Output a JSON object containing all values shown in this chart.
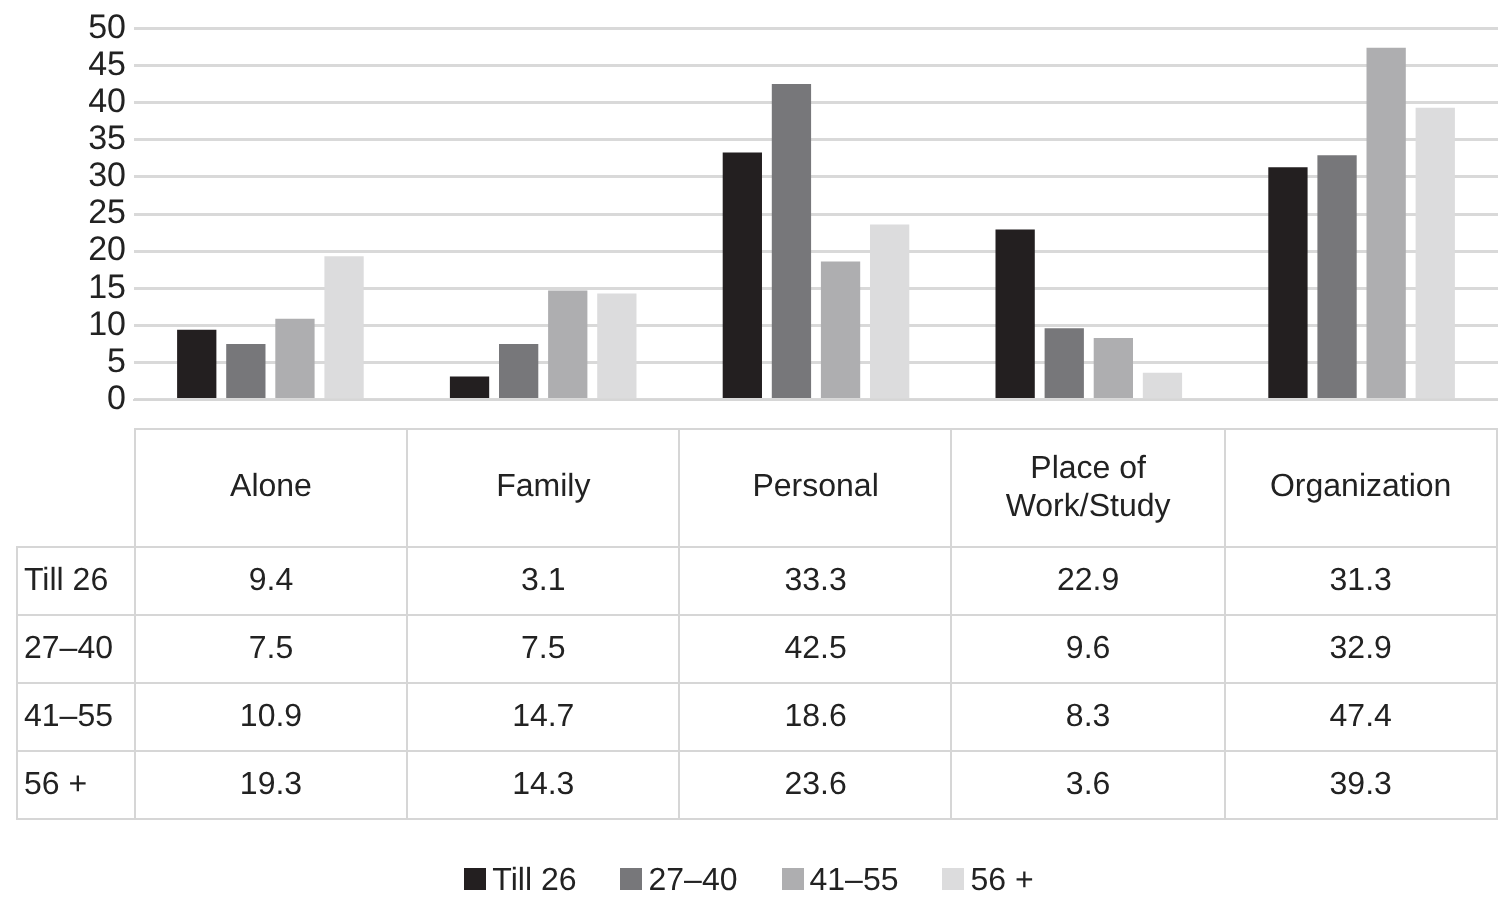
{
  "chart_data": {
    "type": "bar",
    "categories": [
      "Alone",
      "Family",
      "Personal",
      "Place of Work/Study",
      "Organization"
    ],
    "series": [
      {
        "name": "Till 26",
        "color": "#231f20",
        "values": [
          9.4,
          3.1,
          33.3,
          22.9,
          31.3
        ]
      },
      {
        "name": "27–40",
        "color": "#77777a",
        "values": [
          7.5,
          7.5,
          42.5,
          9.6,
          32.9
        ]
      },
      {
        "name": "41–55",
        "color": "#aeaeb0",
        "values": [
          10.9,
          14.7,
          18.6,
          8.3,
          47.4
        ]
      },
      {
        "name": "56 +",
        "color": "#dcdcdd",
        "values": [
          19.3,
          14.3,
          23.6,
          3.6,
          39.3
        ]
      }
    ],
    "ylim": [
      0,
      50
    ],
    "yticks": [
      0,
      5,
      10,
      15,
      20,
      25,
      30,
      35,
      40,
      45,
      50
    ],
    "grid": "y",
    "legend": "bottom",
    "data_labels": true
  }
}
